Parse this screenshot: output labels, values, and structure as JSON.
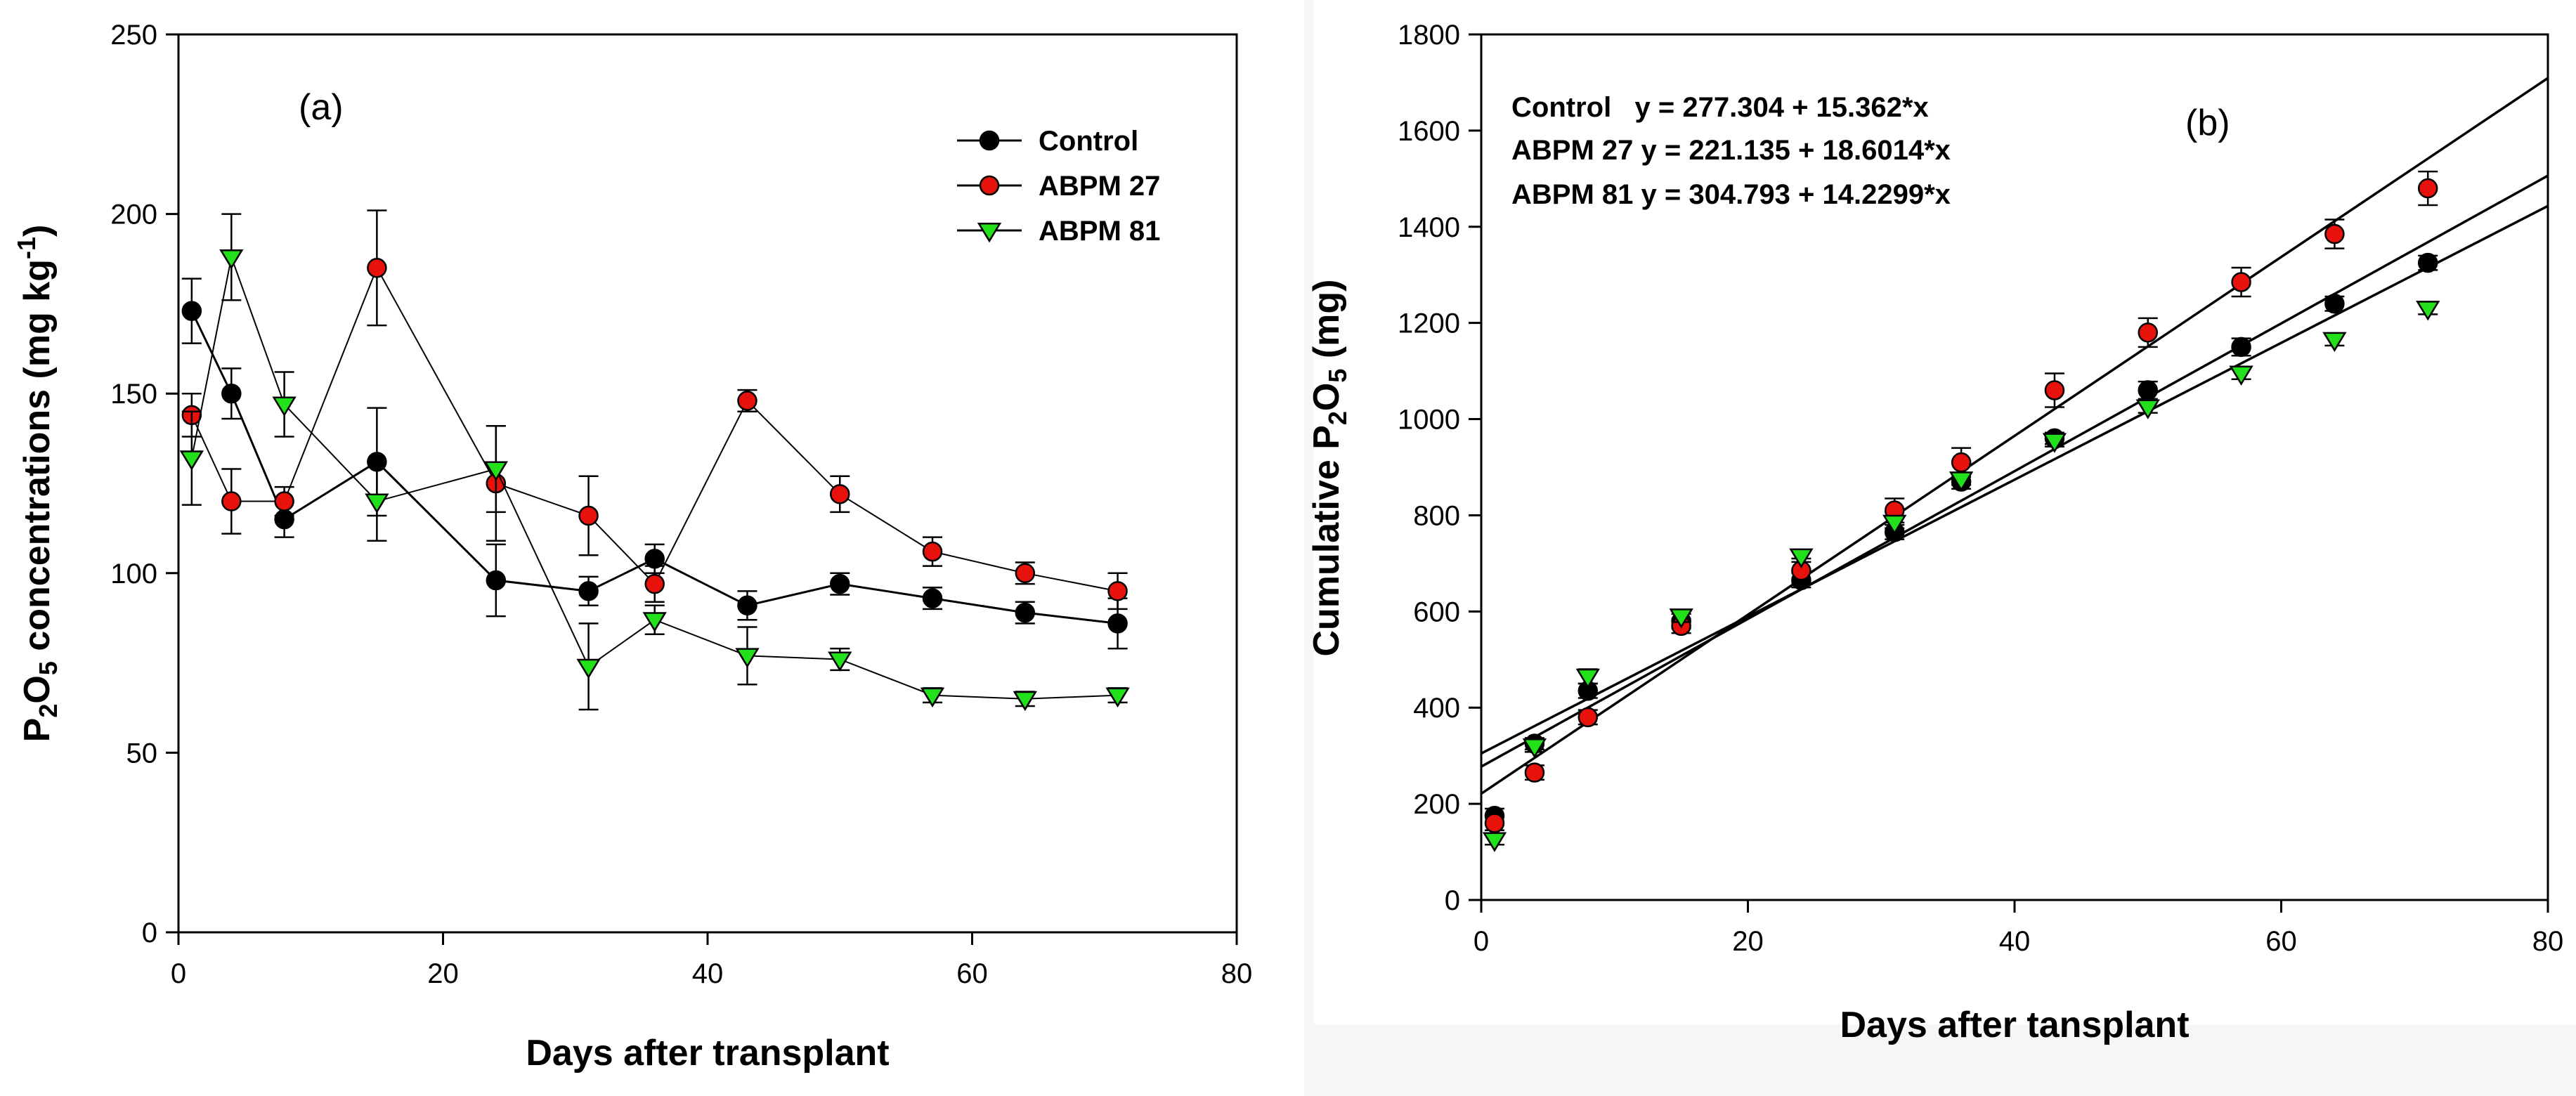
{
  "chart_data": [
    {
      "type": "line",
      "panel_label": "(a)",
      "xlabel": "Days after transplant",
      "ylabel": {
        "text": "P",
        "sub1": "2",
        "mid": "O",
        "sub2": "5",
        "rest": " concentrations (mg kg",
        "sup": "-1",
        "end": ")"
      },
      "xlim": [
        0,
        80
      ],
      "ylim": [
        0,
        250
      ],
      "xticks": [
        "0",
        "20",
        "40",
        "60",
        "80"
      ],
      "yticks": [
        "0",
        "50",
        "100",
        "150",
        "200",
        "250"
      ],
      "legend_position": "top-right",
      "x": [
        1,
        4,
        8,
        15,
        24,
        31,
        36,
        43,
        50,
        57,
        64,
        71
      ],
      "series": [
        {
          "name": "Control",
          "color": "#000000",
          "marker": "circle",
          "values": [
            173,
            150,
            115,
            131,
            98,
            95,
            104,
            91,
            97,
            93,
            89,
            86
          ],
          "errors": [
            9,
            7,
            5,
            15,
            10,
            4,
            4,
            4,
            3,
            3,
            3,
            7
          ]
        },
        {
          "name": "ABPM 27",
          "color": "#e8120c",
          "marker": "circle",
          "values": [
            144,
            120,
            120,
            185,
            125,
            116,
            97,
            148,
            122,
            106,
            100,
            95
          ],
          "errors": [
            6,
            9,
            4,
            16,
            16,
            11,
            5,
            3,
            5,
            4,
            3,
            5
          ]
        },
        {
          "name": "ABPM 81",
          "color": "#22e01a",
          "marker": "triangle-down",
          "values": [
            132,
            188,
            147,
            120,
            129,
            74,
            87,
            77,
            76,
            66,
            65,
            66
          ],
          "errors": [
            13,
            12,
            9,
            11,
            12,
            12,
            4,
            8,
            3,
            2,
            2,
            2
          ]
        }
      ]
    },
    {
      "type": "scatter",
      "panel_label": "(b)",
      "xlabel": "Days after tansplant",
      "ylabel": {
        "text": "Cumulative P",
        "sub1": "2",
        "mid": "O",
        "sub2": "5",
        "rest": " (mg)"
      },
      "xlim": [
        0,
        80
      ],
      "ylim": [
        0,
        1800
      ],
      "xticks": [
        "0",
        "20",
        "40",
        "60",
        "80"
      ],
      "yticks": [
        "0",
        "200",
        "400",
        "600",
        "800",
        "1000",
        "1200",
        "1400",
        "1600",
        "1800"
      ],
      "equations": [
        "Control   y = 277.304 + 15.362*x",
        "ABPM 27 y = 221.135 + 18.6014*x",
        "ABPM 81 y = 304.793 + 14.2299*x"
      ],
      "x": [
        1,
        4,
        8,
        15,
        24,
        31,
        36,
        43,
        50,
        57,
        64,
        71
      ],
      "series": [
        {
          "name": "Control",
          "color": "#000000",
          "marker": "circle",
          "values": [
            175,
            325,
            435,
            580,
            665,
            765,
            870,
            960,
            1060,
            1150,
            1240,
            1325
          ],
          "errors": [
            15,
            12,
            15,
            15,
            15,
            15,
            15,
            12,
            18,
            18,
            15,
            15
          ],
          "fit": {
            "intercept": 277.304,
            "slope": 15.362
          }
        },
        {
          "name": "ABPM 27",
          "color": "#e8120c",
          "marker": "circle",
          "values": [
            160,
            265,
            380,
            570,
            685,
            810,
            910,
            1060,
            1180,
            1285,
            1385,
            1480
          ],
          "errors": [
            15,
            15,
            15,
            15,
            25,
            25,
            30,
            35,
            30,
            30,
            30,
            35
          ],
          "fit": {
            "intercept": 221.135,
            "slope": 18.6014
          }
        },
        {
          "name": "ABPM 81",
          "color": "#22e01a",
          "marker": "triangle-down",
          "values": [
            125,
            320,
            465,
            590,
            715,
            785,
            875,
            955,
            1025,
            1095,
            1165,
            1230
          ],
          "errors": [
            10,
            12,
            15,
            12,
            12,
            12,
            12,
            12,
            12,
            12,
            12,
            12
          ],
          "fit": {
            "intercept": 304.793,
            "slope": 14.2299
          }
        }
      ]
    }
  ]
}
